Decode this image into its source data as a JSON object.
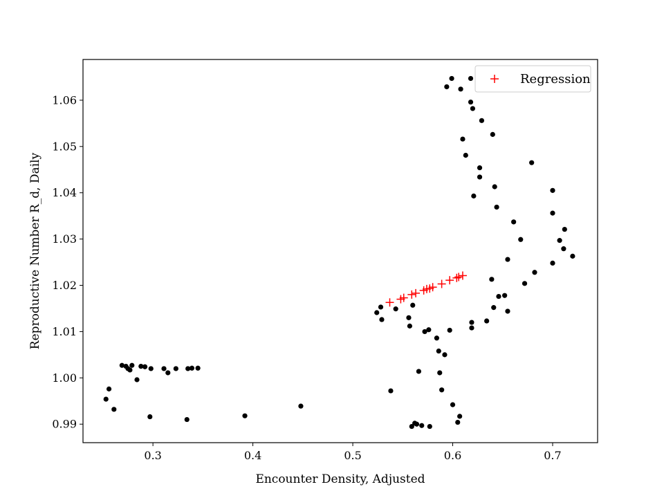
{
  "chart_data": {
    "type": "scatter",
    "title": "",
    "xlabel": "Encounter Density, Adjusted",
    "ylabel": "Reproductive Number R_d, Daily",
    "xlim": [
      0.23,
      0.745
    ],
    "ylim": [
      0.986,
      1.0688
    ],
    "xticks": [
      0.3,
      0.4,
      0.5,
      0.6,
      0.7
    ],
    "xtick_labels": [
      "0.3",
      "0.4",
      "0.5",
      "0.6",
      "0.7"
    ],
    "yticks": [
      0.99,
      1.0,
      1.01,
      1.02,
      1.03,
      1.04,
      1.05,
      1.06
    ],
    "ytick_labels": [
      "0.99",
      "1.00",
      "1.01",
      "1.02",
      "1.03",
      "1.04",
      "1.05",
      "1.06"
    ],
    "grid": false,
    "legend_position": "top-right",
    "colors": {
      "observed": "#000000",
      "regression": "#ff0000"
    },
    "series": [
      {
        "marker": "dot",
        "points": [
          [
            0.253,
            0.9954
          ],
          [
            0.256,
            0.9976
          ],
          [
            0.261,
            0.9932
          ],
          [
            0.269,
            1.0027
          ],
          [
            0.273,
            1.0025
          ],
          [
            0.275,
            1.002
          ],
          [
            0.277,
            1.0017
          ],
          [
            0.279,
            1.0027
          ],
          [
            0.284,
            0.9996
          ],
          [
            0.288,
            1.0025
          ],
          [
            0.292,
            1.0024
          ],
          [
            0.297,
            0.9916
          ],
          [
            0.298,
            1.002
          ],
          [
            0.311,
            1.002
          ],
          [
            0.315,
            1.0011
          ],
          [
            0.323,
            1.002
          ],
          [
            0.334,
            0.991
          ],
          [
            0.335,
            1.002
          ],
          [
            0.339,
            1.0021
          ],
          [
            0.345,
            1.0021
          ],
          [
            0.392,
            0.9918
          ],
          [
            0.448,
            0.9939
          ],
          [
            0.524,
            1.0141
          ],
          [
            0.528,
            1.0153
          ],
          [
            0.529,
            1.0126
          ],
          [
            0.538,
            0.9972
          ],
          [
            0.543,
            1.0149
          ],
          [
            0.556,
            1.013
          ],
          [
            0.557,
            1.0112
          ],
          [
            0.559,
            0.9895
          ],
          [
            0.56,
            1.0157
          ],
          [
            0.562,
            0.9902
          ],
          [
            0.564,
            0.99
          ],
          [
            0.566,
            1.0014
          ],
          [
            0.569,
            0.9897
          ],
          [
            0.572,
            1.01
          ],
          [
            0.576,
            1.0104
          ],
          [
            0.577,
            0.9895
          ],
          [
            0.584,
            1.0086
          ],
          [
            0.586,
            1.0058
          ],
          [
            0.587,
            1.0011
          ],
          [
            0.589,
            0.9974
          ],
          [
            0.592,
            1.005
          ],
          [
            0.594,
            1.0629
          ],
          [
            0.597,
            1.0103
          ],
          [
            0.599,
            1.0647
          ],
          [
            0.6,
            0.9942
          ],
          [
            0.605,
            0.9904
          ],
          [
            0.607,
            0.9917
          ],
          [
            0.608,
            1.0624
          ],
          [
            0.61,
            1.0516
          ],
          [
            0.613,
            1.0481
          ],
          [
            0.618,
            1.0647
          ],
          [
            0.618,
            1.0596
          ],
          [
            0.619,
            1.0108
          ],
          [
            0.619,
            1.012
          ],
          [
            0.62,
            1.0582
          ],
          [
            0.621,
            1.0393
          ],
          [
            0.627,
            1.0454
          ],
          [
            0.627,
            1.0434
          ],
          [
            0.629,
            1.0556
          ],
          [
            0.634,
            1.0123
          ],
          [
            0.639,
            1.0213
          ],
          [
            0.64,
            1.0526
          ],
          [
            0.641,
            1.0152
          ],
          [
            0.642,
            1.0413
          ],
          [
            0.644,
            1.0369
          ],
          [
            0.646,
            1.0176
          ],
          [
            0.652,
            1.0178
          ],
          [
            0.655,
            1.0144
          ],
          [
            0.655,
            1.0256
          ],
          [
            0.661,
            1.0337
          ],
          [
            0.668,
            1.0299
          ],
          [
            0.672,
            1.0204
          ],
          [
            0.679,
            1.0465
          ],
          [
            0.682,
            1.0228
          ],
          [
            0.7,
            1.0248
          ],
          [
            0.7,
            1.0405
          ],
          [
            0.7,
            1.0356
          ],
          [
            0.707,
            1.0297
          ],
          [
            0.711,
            1.0279
          ],
          [
            0.712,
            1.0321
          ],
          [
            0.72,
            1.0263
          ]
        ]
      },
      {
        "name": "Regression",
        "marker": "plus",
        "points": [
          [
            0.537,
            1.0163
          ],
          [
            0.548,
            1.017
          ],
          [
            0.551,
            1.0173
          ],
          [
            0.559,
            1.018
          ],
          [
            0.563,
            1.0183
          ],
          [
            0.571,
            1.0189
          ],
          [
            0.574,
            1.0192
          ],
          [
            0.577,
            1.0193
          ],
          [
            0.58,
            1.0196
          ],
          [
            0.589,
            1.0203
          ],
          [
            0.597,
            1.0211
          ],
          [
            0.604,
            1.0216
          ],
          [
            0.606,
            1.0218
          ],
          [
            0.61,
            1.0221
          ]
        ]
      }
    ]
  }
}
